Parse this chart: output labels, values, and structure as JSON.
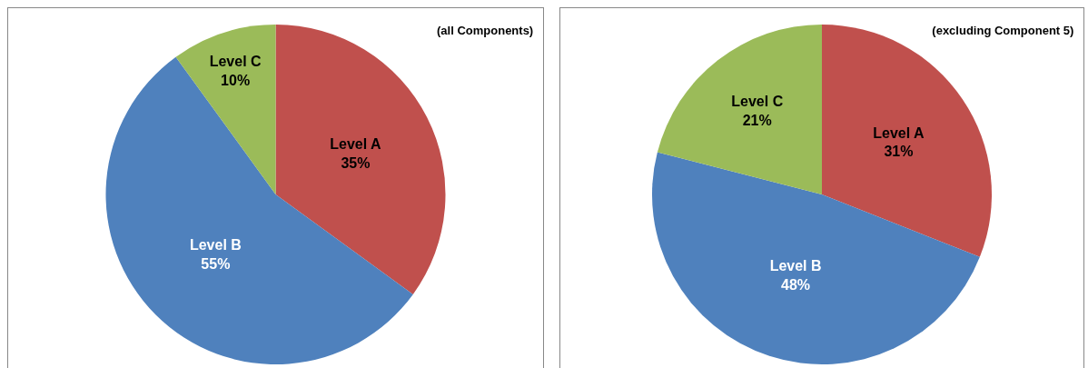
{
  "chart_data": [
    {
      "type": "pie",
      "title": "(all Components)",
      "categories": [
        "Level A",
        "Level B",
        "Level C"
      ],
      "values": [
        35,
        55,
        10
      ],
      "value_labels": [
        "35%",
        "55%",
        "10%"
      ],
      "colors": [
        "#c0504d",
        "#4f81bd",
        "#9bbb59"
      ],
      "legend": false
    },
    {
      "type": "pie",
      "title": "(excluding Component 5)",
      "categories": [
        "Level A",
        "Level B",
        "Level C"
      ],
      "values": [
        31,
        48,
        21
      ],
      "value_labels": [
        "31%",
        "48%",
        "21%"
      ],
      "colors": [
        "#c0504d",
        "#4f81bd",
        "#9bbb59"
      ],
      "legend": false
    }
  ]
}
